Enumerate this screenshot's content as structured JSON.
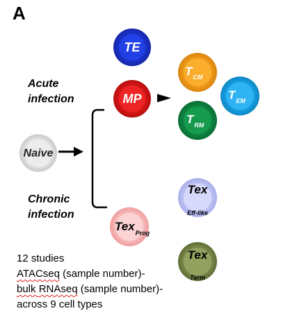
{
  "panel_label": "A",
  "acute_infection": [
    "Acute",
    "infection"
  ],
  "chronic_infection": [
    "Chronic",
    "infection"
  ],
  "cells": {
    "naive": {
      "label": "Naive",
      "color": "#d8d8d8"
    },
    "te": {
      "label": "TE",
      "color": "#1b35d6"
    },
    "mp": {
      "label": "MP",
      "color": "#e01818"
    },
    "tcm": {
      "label": "T",
      "sub": "CM",
      "color": "#f7a21c"
    },
    "tem": {
      "label": "T",
      "sub": "EM",
      "color": "#18a6ea"
    },
    "trm": {
      "label": "T",
      "sub": "RM",
      "color": "#0f8e45"
    },
    "tex_eff": {
      "label": "Tex",
      "sub": "Eff-like",
      "color": "#aab0ee"
    },
    "tex_prog": {
      "label": "Tex",
      "sub": "Prog",
      "color": "#f2a6a6"
    },
    "tex_term": {
      "label": "Tex",
      "sub": "Term",
      "color": "#6f7d45"
    }
  },
  "notes": {
    "line1": "12 studies",
    "line2_a": "ATACseq",
    "line2_b": " (sample number)-",
    "line3_a": "bulk ",
    "line3_b": "RNAseq",
    "line3_c": " (sample number)-",
    "line4": "across 9 cell types"
  }
}
